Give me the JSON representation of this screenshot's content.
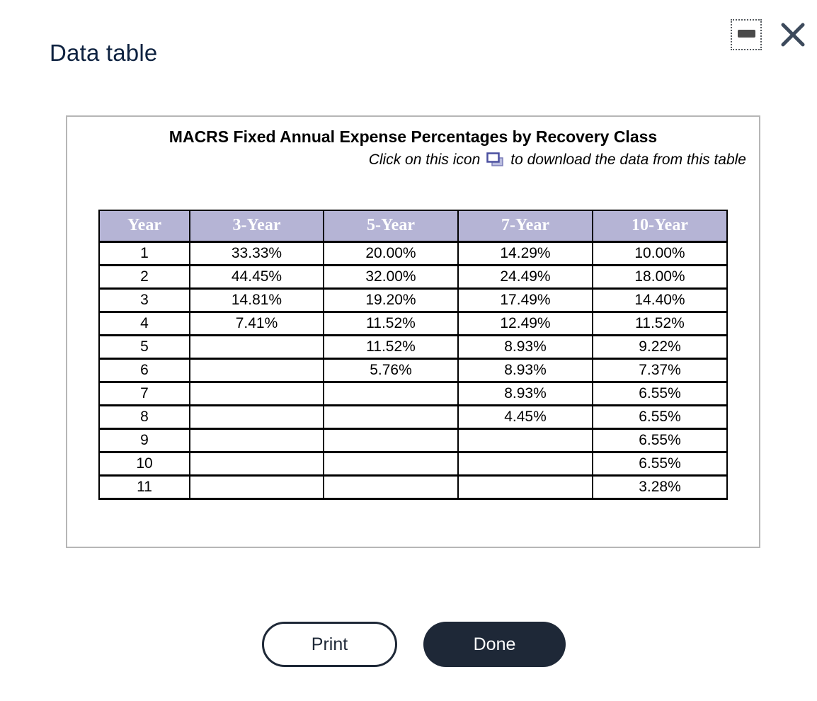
{
  "page": {
    "title": "Data table"
  },
  "window_controls": {
    "minimize_icon": "minimize-icon",
    "close_icon": "close-icon"
  },
  "panel": {
    "title": "MACRS Fixed Annual Expense Percentages by Recovery Class",
    "subtitle_prefix": "Click on this icon",
    "subtitle_suffix": "to download the data from this table",
    "download_icon": "download-data-icon"
  },
  "table": {
    "headers": [
      "Year",
      "3-Year",
      "5-Year",
      "7-Year",
      "10-Year"
    ],
    "rows": [
      [
        "1",
        "33.33%",
        "20.00%",
        "14.29%",
        "10.00%"
      ],
      [
        "2",
        "44.45%",
        "32.00%",
        "24.49%",
        "18.00%"
      ],
      [
        "3",
        "14.81%",
        "19.20%",
        "17.49%",
        "14.40%"
      ],
      [
        "4",
        "7.41%",
        "11.52%",
        "12.49%",
        "11.52%"
      ],
      [
        "5",
        "",
        "11.52%",
        "8.93%",
        "9.22%"
      ],
      [
        "6",
        "",
        "5.76%",
        "8.93%",
        "7.37%"
      ],
      [
        "7",
        "",
        "",
        "8.93%",
        "6.55%"
      ],
      [
        "8",
        "",
        "",
        "4.45%",
        "6.55%"
      ],
      [
        "9",
        "",
        "",
        "",
        "6.55%"
      ],
      [
        "10",
        "",
        "",
        "",
        "6.55%"
      ],
      [
        "11",
        "",
        "",
        "",
        "3.28%"
      ]
    ]
  },
  "buttons": {
    "print": "Print",
    "done": "Done"
  },
  "colors": {
    "header_bg": "#b5b4d5",
    "accent_dark": "#1e2837",
    "title_navy": "#0e2240",
    "panel_border": "#b6b6b6",
    "icon_blue": "#4c50a0",
    "icon_fill": "#b9bcdf"
  }
}
